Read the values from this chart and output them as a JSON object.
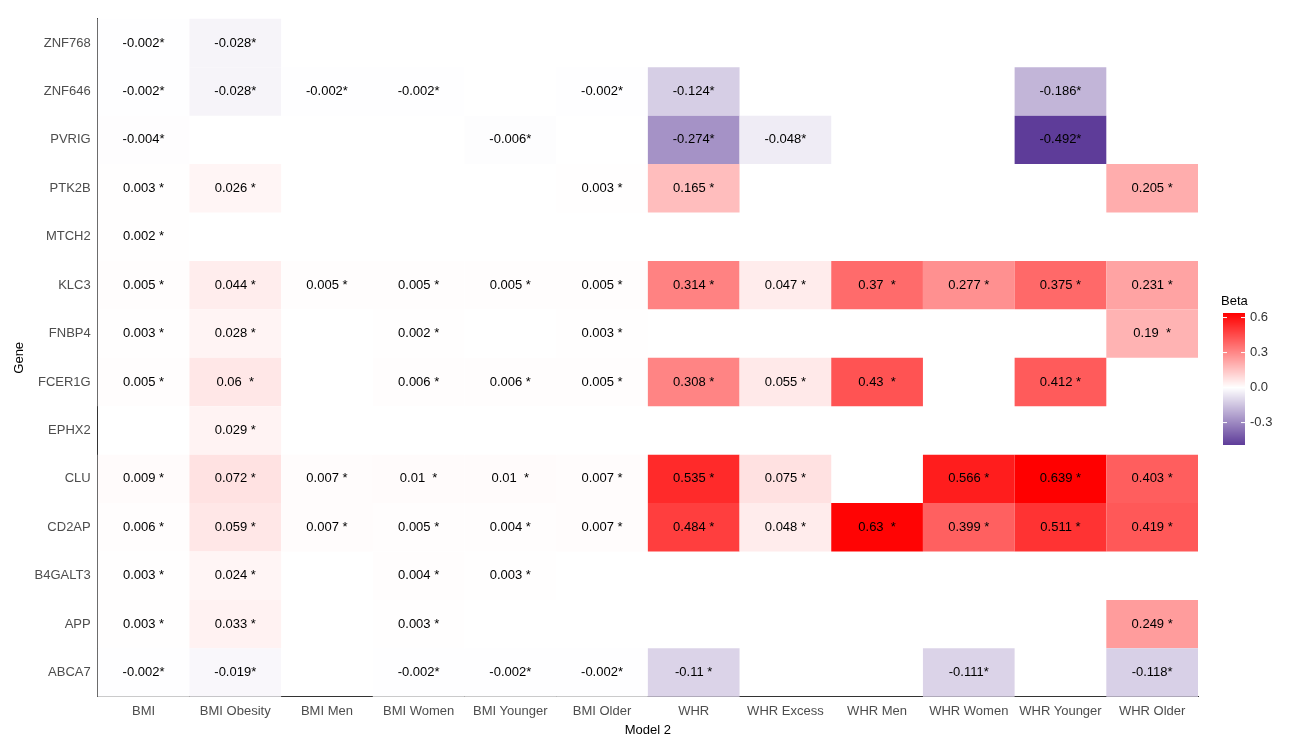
{
  "chart_data": {
    "type": "heatmap",
    "xlabel": "Model 2",
    "ylabel": "Gene",
    "legend_title": "Beta",
    "categories": [
      "BMI",
      "BMI Obesity",
      "BMI Men",
      "BMI Women",
      "BMI Younger",
      "BMI Older",
      "WHR",
      "WHR Excess",
      "WHR Men",
      "WHR Women",
      "WHR Younger",
      "WHR Older"
    ],
    "y_categories": [
      "ZNF768",
      "ZNF646",
      "PVRIG",
      "PTK2B",
      "MTCH2",
      "KLC3",
      "FNBP4",
      "FCER1G",
      "EPHX2",
      "CLU",
      "CD2AP",
      "B4GALT3",
      "APP",
      "ABCA7"
    ],
    "cells": [
      [
        -0.002,
        -0.028,
        null,
        null,
        null,
        null,
        null,
        null,
        null,
        null,
        null,
        null
      ],
      [
        -0.002,
        -0.028,
        -0.002,
        -0.002,
        null,
        -0.002,
        -0.124,
        null,
        null,
        null,
        -0.186,
        null
      ],
      [
        -0.004,
        null,
        null,
        null,
        -0.006,
        null,
        -0.274,
        -0.048,
        null,
        null,
        -0.492,
        null
      ],
      [
        0.003,
        0.026,
        null,
        null,
        null,
        0.003,
        0.165,
        null,
        null,
        null,
        null,
        0.205
      ],
      [
        0.002,
        null,
        null,
        null,
        null,
        null,
        null,
        null,
        null,
        null,
        null,
        null
      ],
      [
        0.005,
        0.044,
        0.005,
        0.005,
        0.005,
        0.005,
        0.314,
        0.047,
        0.37,
        0.277,
        0.375,
        0.231
      ],
      [
        0.003,
        0.028,
        null,
        0.002,
        null,
        0.003,
        null,
        null,
        null,
        null,
        null,
        0.19
      ],
      [
        0.005,
        0.06,
        null,
        0.006,
        0.006,
        0.005,
        0.308,
        0.055,
        0.43,
        null,
        0.412,
        null
      ],
      [
        null,
        0.029,
        null,
        null,
        null,
        null,
        null,
        null,
        null,
        null,
        null,
        null
      ],
      [
        0.009,
        0.072,
        0.007,
        0.01,
        0.01,
        0.007,
        0.535,
        0.075,
        null,
        0.566,
        0.639,
        0.403
      ],
      [
        0.006,
        0.059,
        0.007,
        0.005,
        0.004,
        0.007,
        0.484,
        0.048,
        0.63,
        0.399,
        0.511,
        0.419
      ],
      [
        0.003,
        0.024,
        null,
        0.004,
        0.003,
        null,
        null,
        null,
        null,
        null,
        null,
        null
      ],
      [
        0.003,
        0.033,
        null,
        0.003,
        null,
        null,
        null,
        null,
        null,
        null,
        null,
        0.249
      ],
      [
        -0.002,
        -0.019,
        null,
        -0.002,
        -0.002,
        -0.002,
        -0.11,
        null,
        null,
        -0.111,
        null,
        -0.118
      ]
    ],
    "cell_labels": [
      [
        "-0.002*",
        "-0.028*",
        null,
        null,
        null,
        null,
        null,
        null,
        null,
        null,
        null,
        null
      ],
      [
        "-0.002*",
        "-0.028*",
        "-0.002*",
        "-0.002*",
        null,
        "-0.002*",
        "-0.124*",
        null,
        null,
        null,
        "-0.186*",
        null
      ],
      [
        "-0.004*",
        null,
        null,
        null,
        "-0.006*",
        null,
        "-0.274*",
        "-0.048*",
        null,
        null,
        "-0.492*",
        null
      ],
      [
        "0.003 *",
        "0.026 *",
        null,
        null,
        null,
        "0.003 *",
        "0.165 *",
        null,
        null,
        null,
        null,
        "0.205 *"
      ],
      [
        "0.002 *",
        null,
        null,
        null,
        null,
        null,
        null,
        null,
        null,
        null,
        null,
        null
      ],
      [
        "0.005 *",
        "0.044 *",
        "0.005 *",
        "0.005 *",
        "0.005 *",
        "0.005 *",
        "0.314 *",
        "0.047 *",
        "0.37  *",
        "0.277 *",
        "0.375 *",
        "0.231 *"
      ],
      [
        "0.003 *",
        "0.028 *",
        null,
        "0.002 *",
        null,
        "0.003 *",
        null,
        null,
        null,
        null,
        null,
        "0.19  *"
      ],
      [
        "0.005 *",
        "0.06  *",
        null,
        "0.006 *",
        "0.006 *",
        "0.005 *",
        "0.308 *",
        "0.055 *",
        "0.43  *",
        null,
        "0.412 *",
        null
      ],
      [
        null,
        "0.029 *",
        null,
        null,
        null,
        null,
        null,
        null,
        null,
        null,
        null,
        null
      ],
      [
        "0.009 *",
        "0.072 *",
        "0.007 *",
        "0.01  *",
        "0.01  *",
        "0.007 *",
        "0.535 *",
        "0.075 *",
        null,
        "0.566 *",
        "0.639 *",
        "0.403 *"
      ],
      [
        "0.006 *",
        "0.059 *",
        "0.007 *",
        "0.005 *",
        "0.004 *",
        "0.007 *",
        "0.484 *",
        "0.048 *",
        "0.63  *",
        "0.399 *",
        "0.511 *",
        "0.419 *"
      ],
      [
        "0.003 *",
        "0.024 *",
        null,
        "0.004 *",
        "0.003 *",
        null,
        null,
        null,
        null,
        null,
        null,
        null
      ],
      [
        "0.003 *",
        "0.033 *",
        null,
        "0.003 *",
        null,
        null,
        null,
        null,
        null,
        null,
        null,
        "0.249 *"
      ],
      [
        "-0.002*",
        "-0.019*",
        null,
        "-0.002*",
        "-0.002*",
        "-0.002*",
        "-0.11 *",
        null,
        null,
        "-0.111*",
        null,
        "-0.118*"
      ]
    ],
    "colors": [
      "#5e3c99",
      "#ffffff",
      "#ff0000"
    ],
    "clim": [
      -0.492,
      0.639
    ],
    "cticks": [
      -0.3,
      {
        "value": 0,
        "label": "0.0"
      },
      0.3,
      0.6
    ]
  }
}
